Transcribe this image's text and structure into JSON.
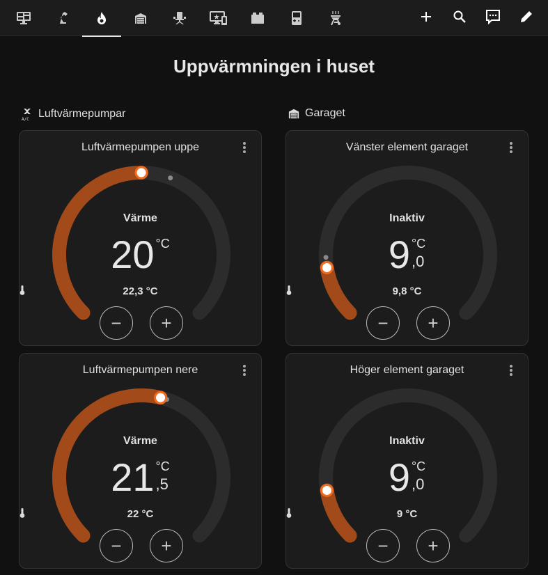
{
  "toolbar": {
    "tabs": [
      {
        "icon": "monitor-dashboard-icon"
      },
      {
        "icon": "desk-lamp-icon"
      },
      {
        "icon": "fire-icon",
        "active": true
      },
      {
        "icon": "garage-icon"
      },
      {
        "icon": "office-chair-icon"
      },
      {
        "icon": "monitor-star-cellphone-icon"
      },
      {
        "icon": "toy-brick-icon"
      },
      {
        "icon": "gameboy-icon"
      },
      {
        "icon": "grill-icon"
      }
    ],
    "actions": [
      {
        "icon": "plus-icon"
      },
      {
        "icon": "magnify-icon"
      },
      {
        "icon": "message-text-icon"
      },
      {
        "icon": "pencil-icon"
      }
    ]
  },
  "page_title": "Uppvärmningen i huset",
  "sections": [
    {
      "title": "Luftvärmepumpar",
      "icon": "air-conditioner-icon"
    },
    {
      "title": "Garaget",
      "icon": "garage-icon"
    }
  ],
  "colors": {
    "heat": "#a34a1a",
    "handle_ring": "#f06b1e",
    "track": "#2c2c2c"
  },
  "cards": [
    {
      "name": "Luftvärmepumpen uppe",
      "mode": "Värme",
      "target_int": "20",
      "target_dec": "",
      "unit": "°C",
      "current": "22,3 °C",
      "target_value": 20,
      "current_value": 22.3,
      "min": 5,
      "max": 35
    },
    {
      "name": "Vänster element garaget",
      "mode": "Inaktiv",
      "target_int": "9",
      "target_dec": ",0",
      "unit": "°C",
      "current": "9,8 °C",
      "target_value": 9,
      "current_value": 9.8,
      "min": 5,
      "max": 35
    },
    {
      "name": "Luftvärmepumpen nere",
      "mode": "Värme",
      "target_int": "21",
      "target_dec": ",5",
      "unit": "°C",
      "current": "22 °C",
      "target_value": 21.5,
      "current_value": 22,
      "min": 5,
      "max": 35
    },
    {
      "name": "Höger element garaget",
      "mode": "Inaktiv",
      "target_int": "9",
      "target_dec": ",0",
      "unit": "°C",
      "current": "9 °C",
      "target_value": 9,
      "current_value": 9,
      "min": 5,
      "max": 35
    }
  ],
  "buttons": {
    "minus": "−",
    "plus": "+"
  }
}
